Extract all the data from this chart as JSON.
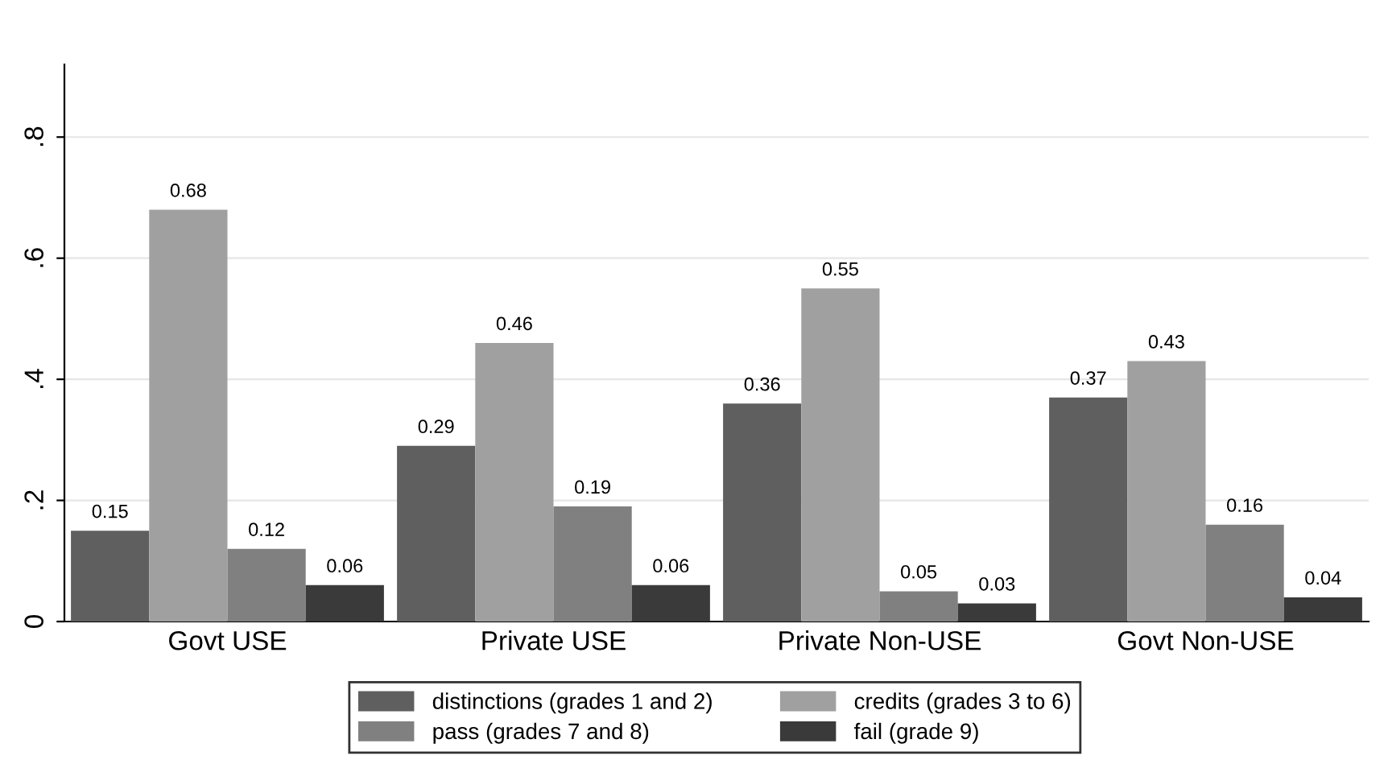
{
  "chart_data": {
    "type": "bar",
    "categories": [
      "Govt USE",
      "Private USE",
      "Private Non-USE",
      "Govt Non-USE"
    ],
    "series": [
      {
        "name": "distinctions (grades 1 and 2)",
        "color": "#5f5f5f",
        "values": [
          0.15,
          0.29,
          0.36,
          0.37
        ]
      },
      {
        "name": "credits (grades 3 to 6)",
        "color": "#a0a0a0",
        "values": [
          0.68,
          0.46,
          0.55,
          0.43
        ]
      },
      {
        "name": "pass (grades 7 and 8)",
        "color": "#808080",
        "values": [
          0.12,
          0.19,
          0.05,
          0.16
        ]
      },
      {
        "name": "fail (grade 9)",
        "color": "#3a3a3a",
        "values": [
          0.06,
          0.06,
          0.03,
          0.04
        ]
      }
    ],
    "ylim": [
      0,
      0.92
    ],
    "yticks": [
      {
        "value": 0,
        "label": "0"
      },
      {
        "value": 0.2,
        "label": ".2"
      },
      {
        "value": 0.4,
        "label": ".4"
      },
      {
        "value": 0.6,
        "label": ".6"
      },
      {
        "value": 0.8,
        "label": ".8"
      }
    ],
    "grid": "y",
    "legend": "bottom",
    "data_labels": true
  }
}
